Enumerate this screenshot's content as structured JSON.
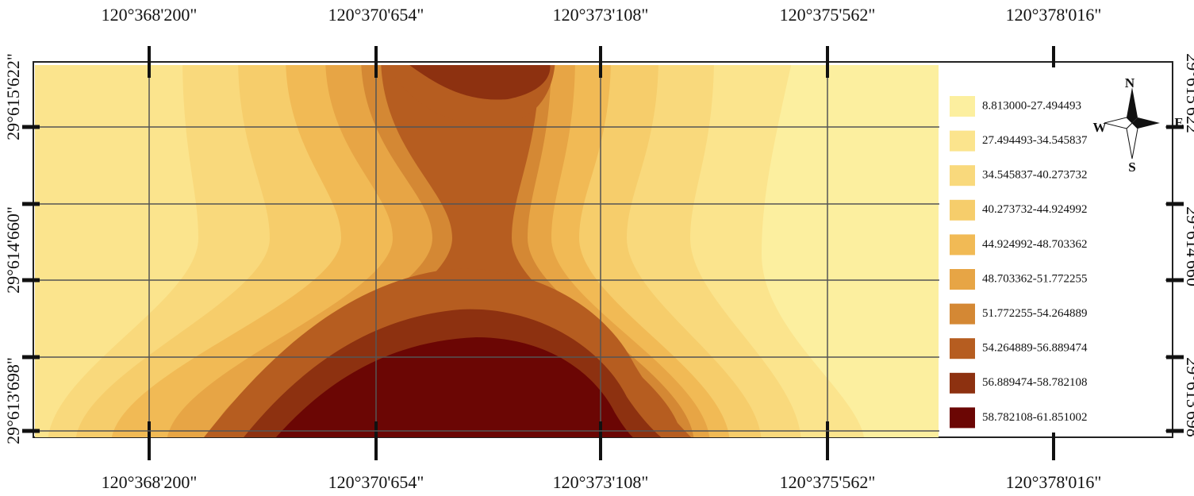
{
  "map": {
    "longitude_labels": [
      "120°368'200\"",
      "120°370'654\"",
      "120°373'108\"",
      "120°375'562\"",
      "120°378'016\""
    ],
    "latitude_labels": [
      "29°615'622\"",
      "29°614'660\"",
      "29°613'698\""
    ],
    "legend": {
      "items": [
        {
          "label": "8.813000-27.494493",
          "color": "#fcef9f"
        },
        {
          "label": "27.494493-34.545837",
          "color": "#fbe48d"
        },
        {
          "label": "34.545837-40.273732",
          "color": "#f9d97c"
        },
        {
          "label": "40.273732-44.924992",
          "color": "#f6cd6b"
        },
        {
          "label": "44.924992-48.703362",
          "color": "#f1ba55"
        },
        {
          "label": "48.703362-51.772255",
          "color": "#e7a545"
        },
        {
          "label": "51.772255-54.264889",
          "color": "#d48834"
        },
        {
          "label": "54.264889-56.889474",
          "color": "#b65d20"
        },
        {
          "label": "56.889474-58.782108",
          "color": "#8d3110"
        },
        {
          "label": "58.782108-61.851002",
          "color": "#6b0604"
        }
      ]
    },
    "compass": {
      "north": "N",
      "south": "S",
      "west": "W",
      "east": "E"
    }
  }
}
